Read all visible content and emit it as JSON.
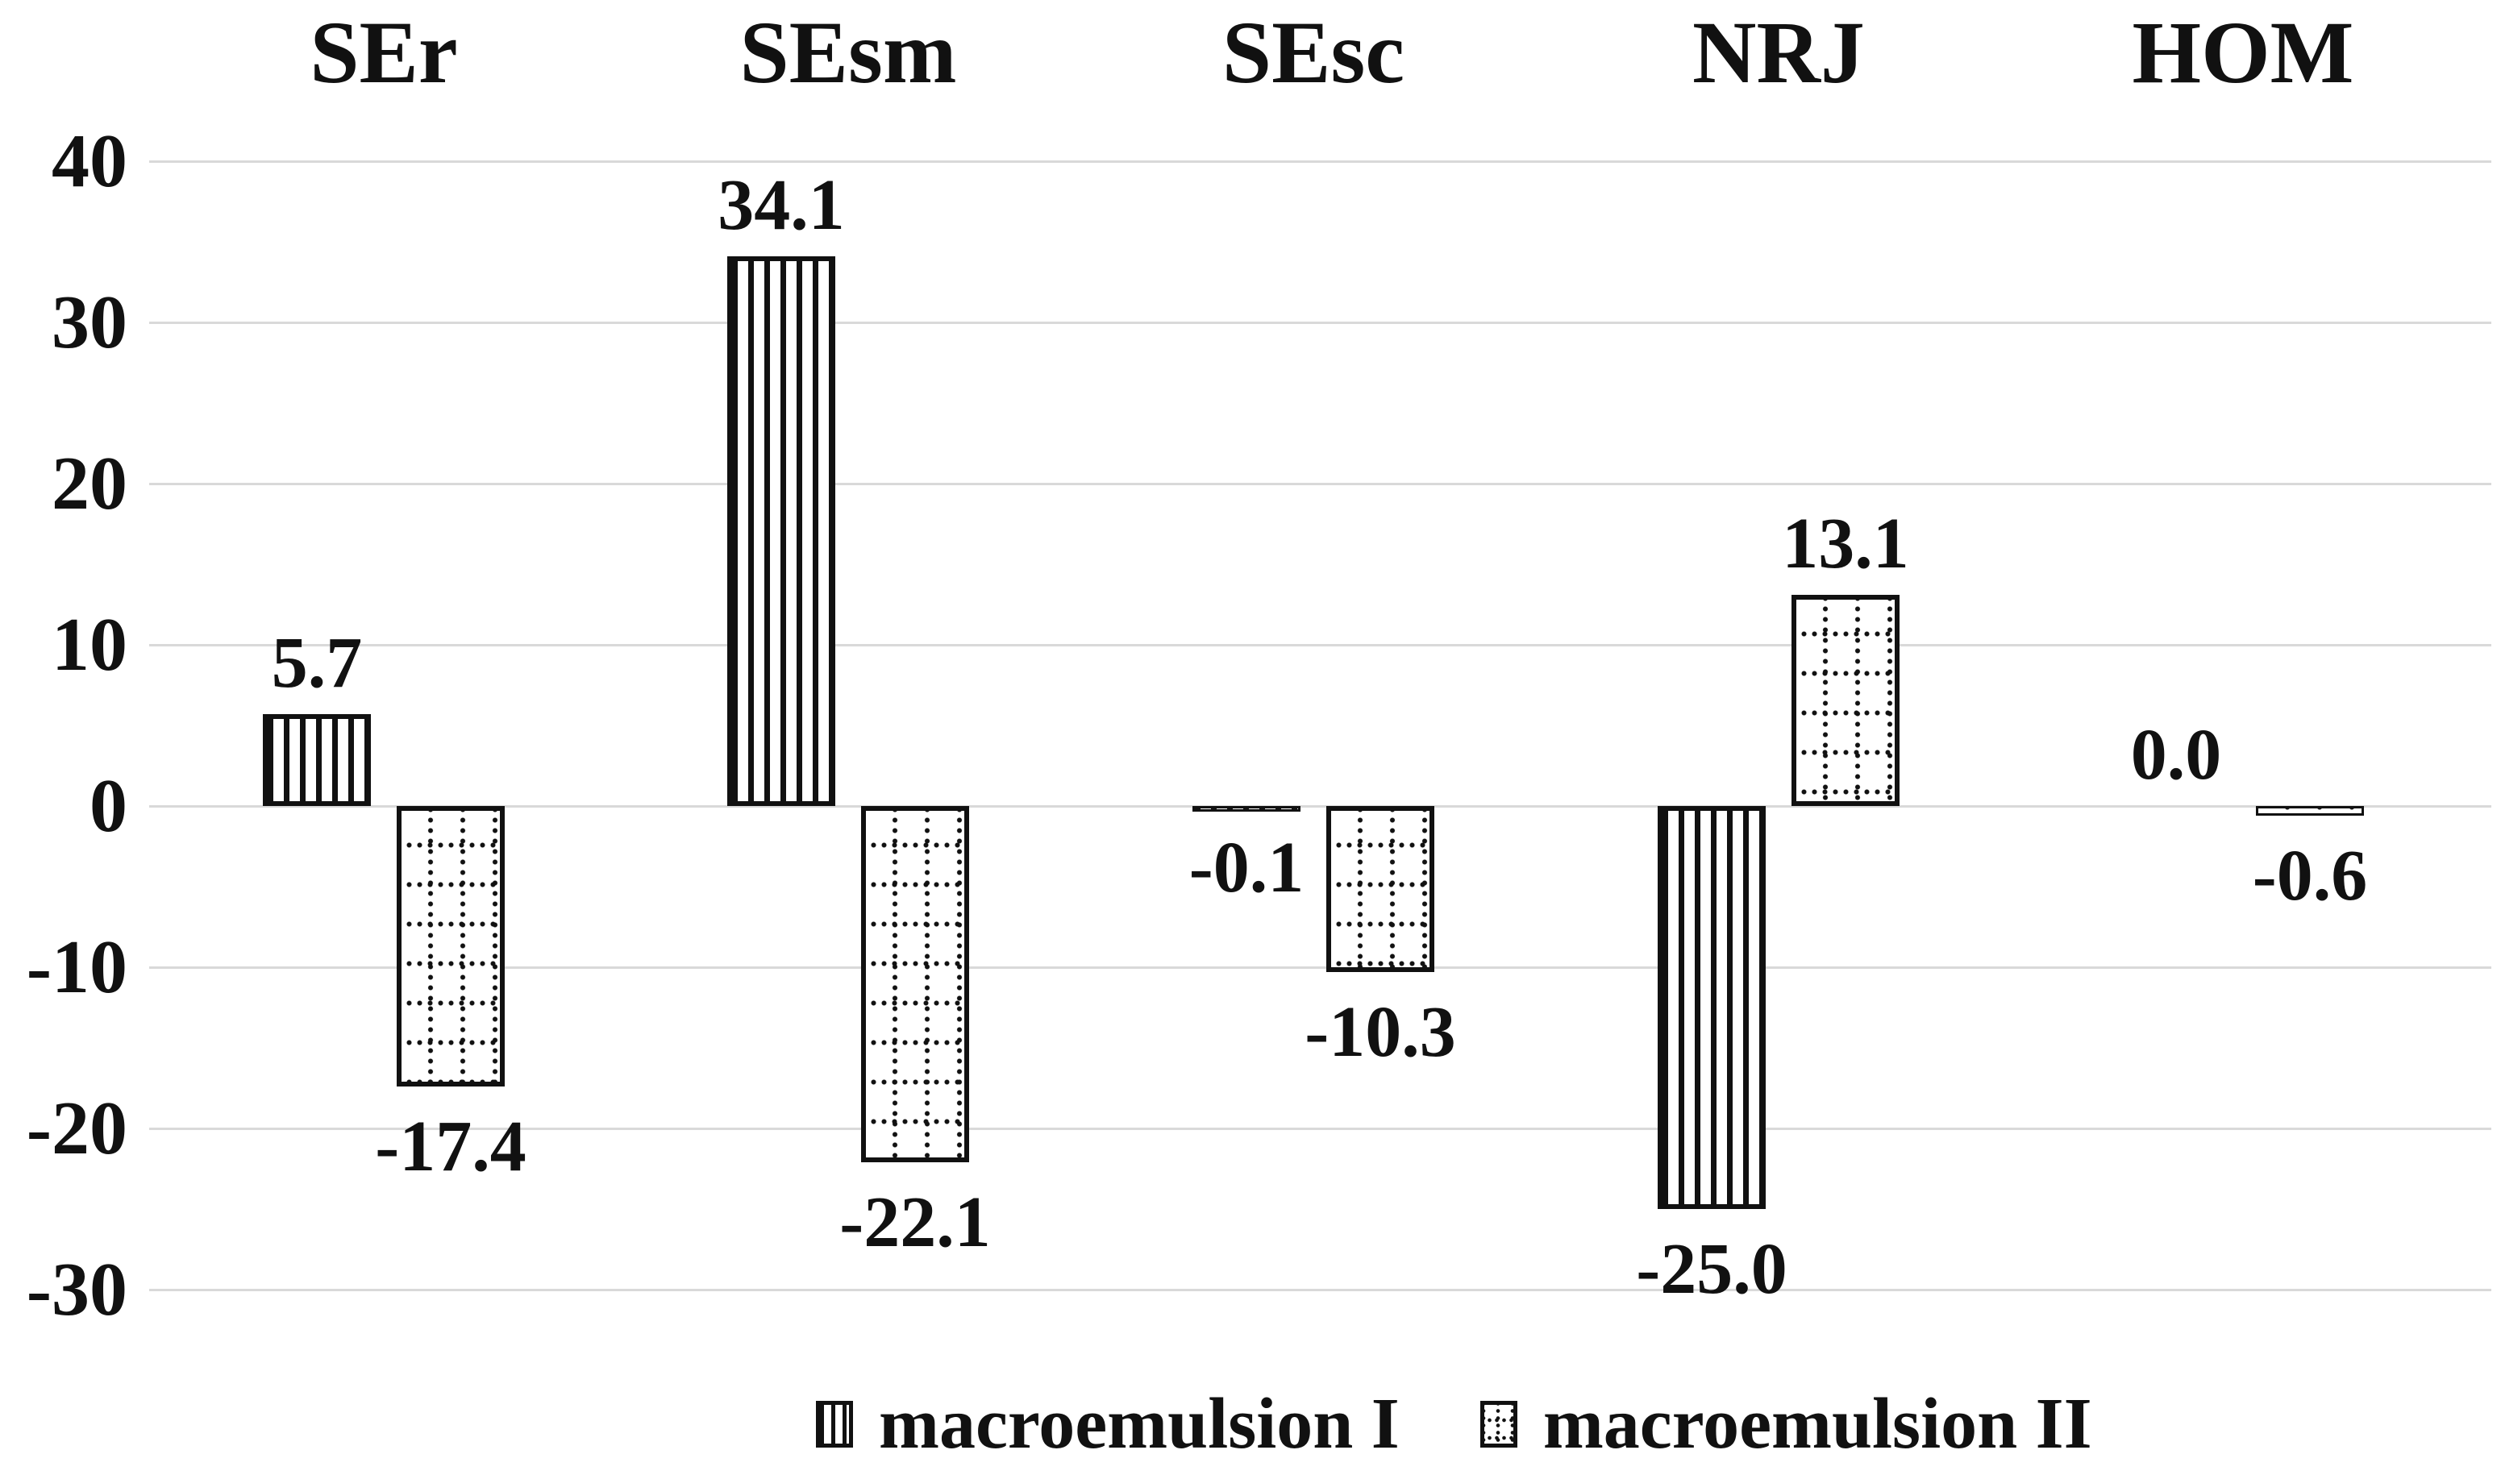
{
  "chart_data": {
    "type": "bar",
    "title": "",
    "xlabel": "",
    "ylabel": "",
    "categories": [
      "SEr",
      "SEsm",
      "SEsc",
      "NRJ",
      "HOM"
    ],
    "series": [
      {
        "name": "macroemulsion I",
        "pattern": "vertical-stripes",
        "values": [
          5.7,
          34.1,
          -0.1,
          -25.0,
          0.0
        ]
      },
      {
        "name": "macroemulsion II",
        "pattern": "dotted-grid",
        "values": [
          -17.4,
          -22.1,
          -10.3,
          13.1,
          -0.6
        ]
      }
    ],
    "data_labels": [
      [
        "5.7",
        "34.1",
        "-0.1",
        "-25.0",
        "0.0"
      ],
      [
        "-17.4",
        "-22.1",
        "-10.3",
        "13.1",
        "-0.6"
      ]
    ],
    "yticks": [
      40,
      30,
      20,
      10,
      0,
      -10,
      -20,
      -30
    ],
    "ytick_labels": [
      "40",
      "30",
      "20",
      "10",
      "0",
      "-10",
      "-20",
      "-30"
    ],
    "ylim": [
      -33,
      43
    ],
    "grid": true,
    "legend_position": "bottom"
  },
  "legend": {
    "items": [
      {
        "label": "macroemulsion I"
      },
      {
        "label": "macroemulsion II"
      }
    ]
  },
  "colors": {
    "background": "#ffffff",
    "text": "#111111",
    "bar_border": "#111111",
    "gridline": "#d9d9d9"
  }
}
